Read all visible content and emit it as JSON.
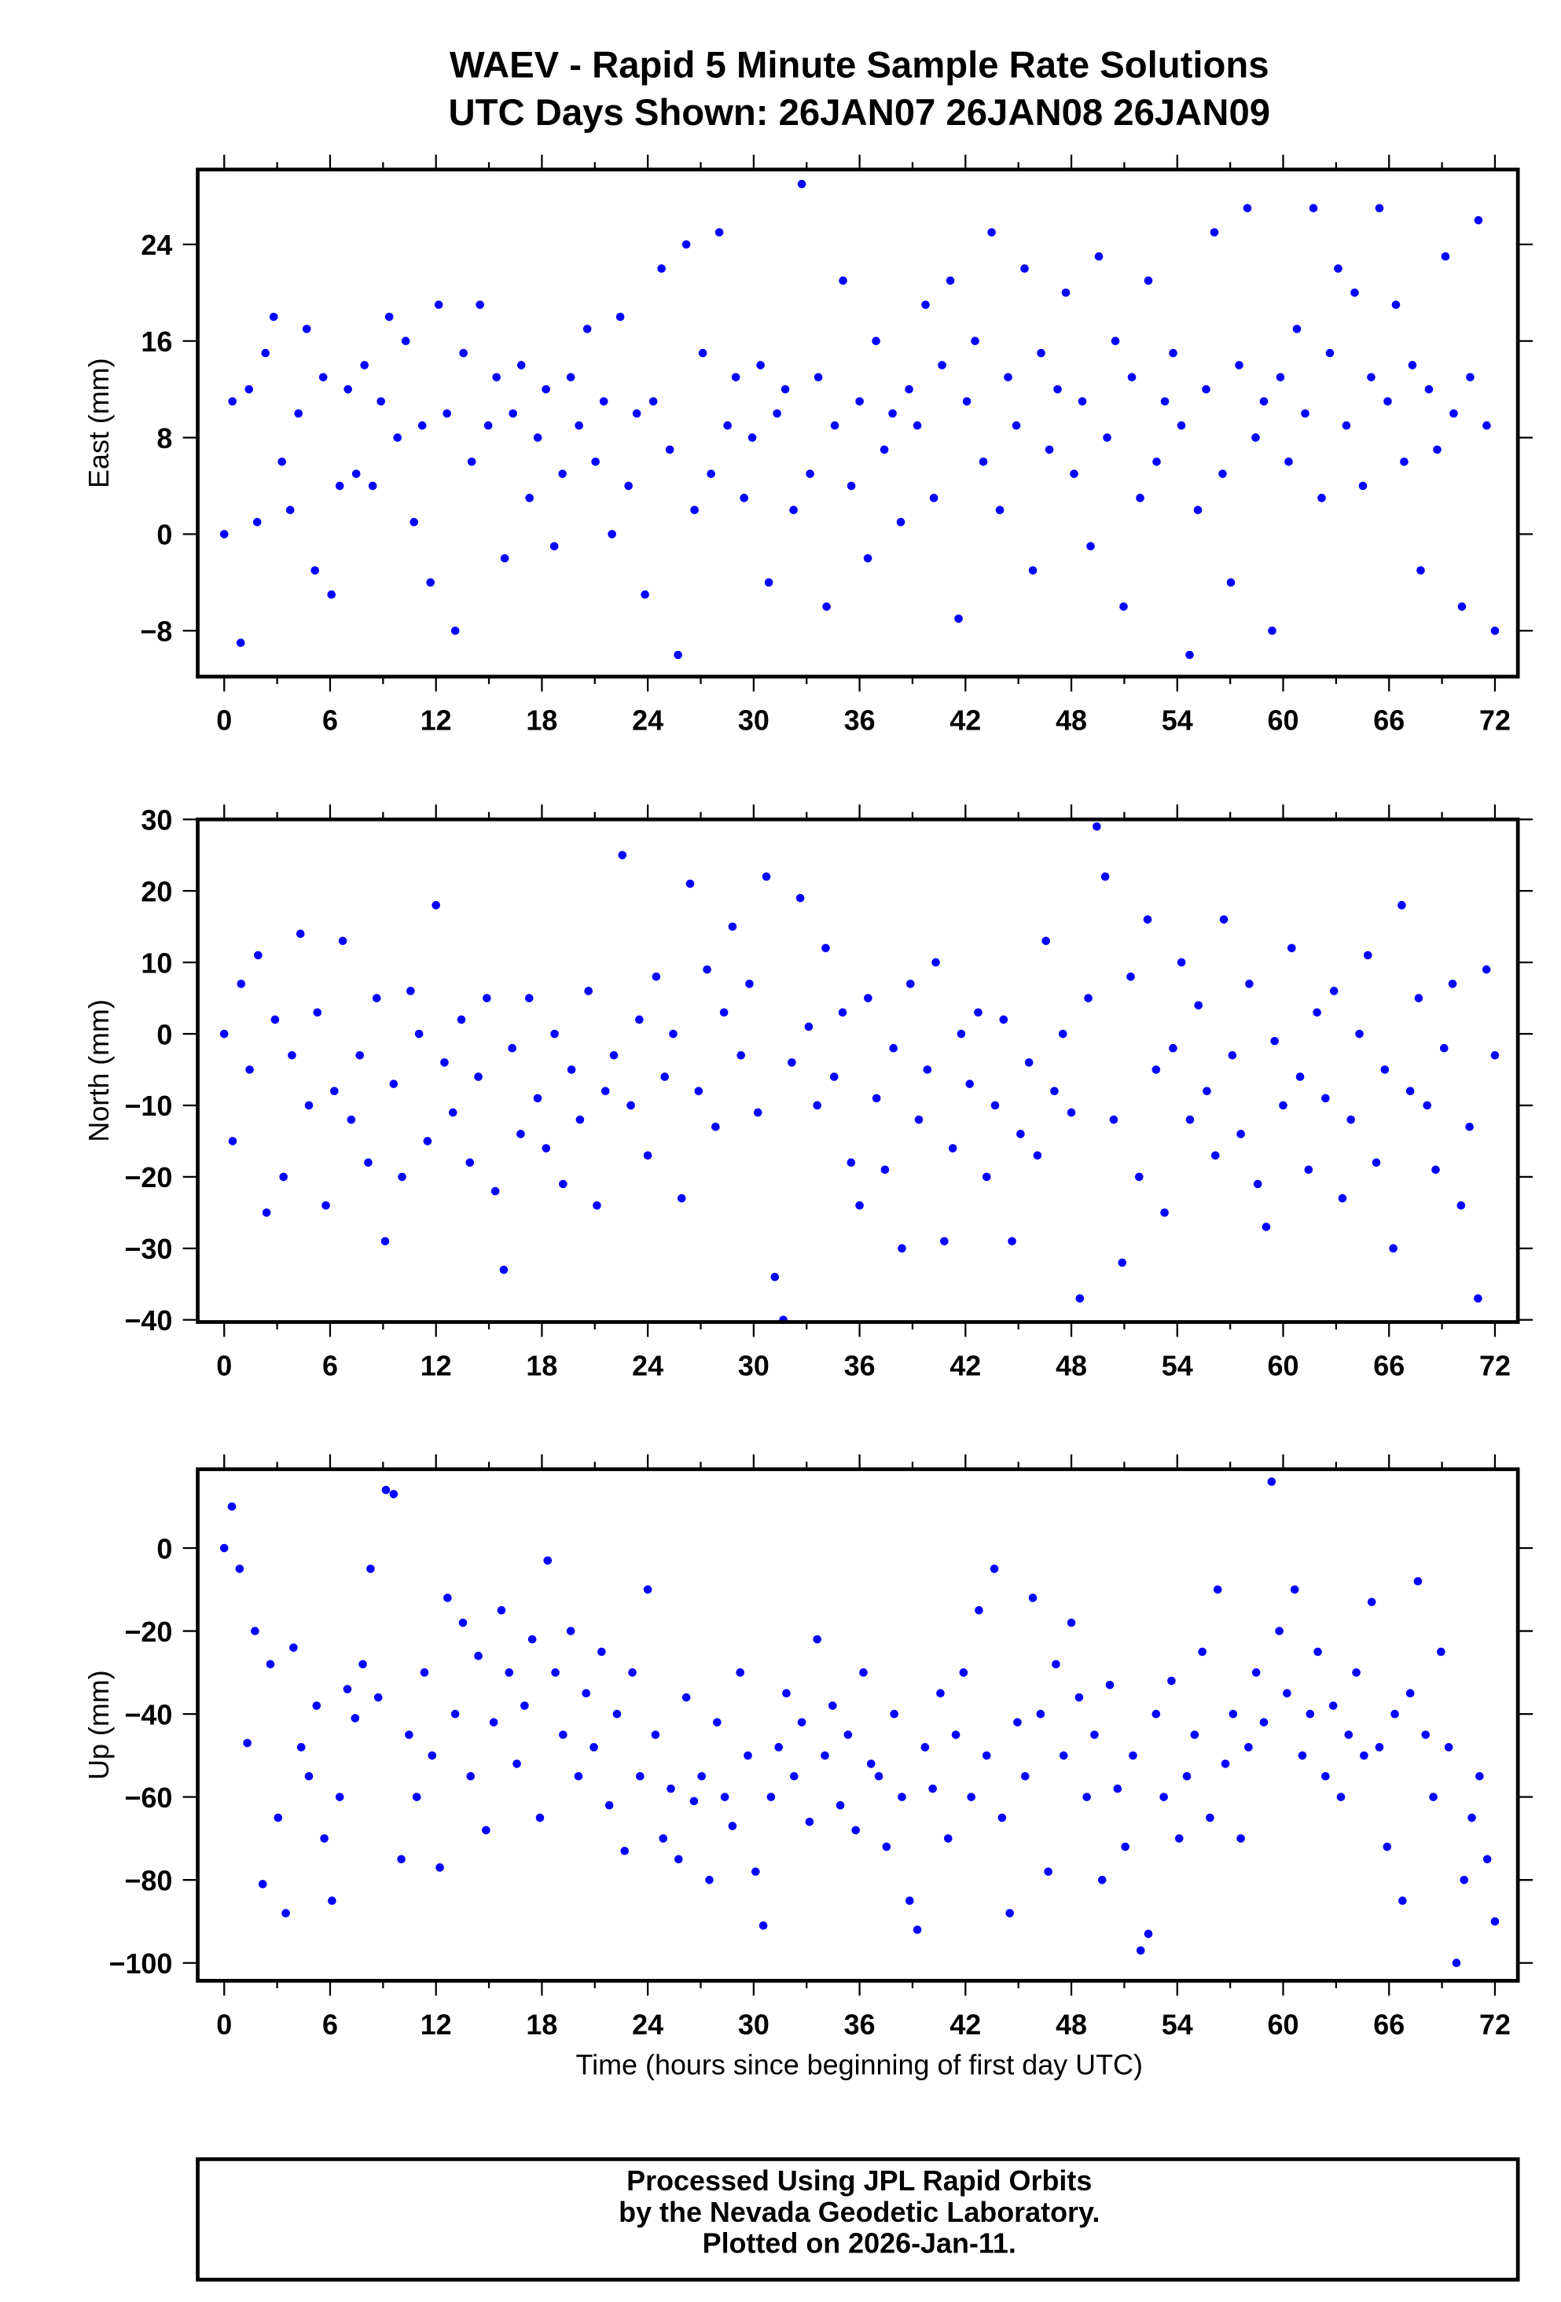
{
  "title_line1": "WAEV - Rapid 5 Minute Sample Rate Solutions",
  "title_line2": "UTC Days Shown:  26JAN07 26JAN08 26JAN09",
  "footer": {
    "line1": "Processed Using JPL Rapid Orbits",
    "line2": "by the Nevada Geodetic Laboratory.",
    "line3": "Plotted on 2026-Jan-11."
  },
  "point_color": "#0000ff",
  "chart_data": [
    {
      "type": "scatter",
      "ylabel": "East (mm)",
      "xlabel": "",
      "xlim": [
        -1.5,
        73.3
      ],
      "ylim": [
        -11.8,
        30.2
      ],
      "x_range": [
        0,
        72
      ],
      "xticks": [
        0,
        6,
        12,
        18,
        24,
        30,
        36,
        42,
        48,
        54,
        60,
        66,
        72
      ],
      "yticks": [
        24,
        16,
        8,
        0,
        -8
      ],
      "ytick_labels": [
        "24",
        "16",
        "8",
        "0",
        "−8"
      ],
      "values": [
        0,
        11,
        -9,
        12,
        1,
        15,
        18,
        6,
        2,
        10,
        17,
        -3,
        13,
        -5,
        4,
        12,
        5,
        14,
        4,
        11,
        18,
        8,
        16,
        1,
        9,
        -4,
        19,
        10,
        -8,
        15,
        6,
        19,
        9,
        13,
        -2,
        10,
        14,
        3,
        8,
        12,
        -1,
        5,
        13,
        9,
        17,
        6,
        11,
        0,
        18,
        4,
        10,
        -5,
        11,
        22,
        7,
        -10,
        24,
        2,
        15,
        5,
        25,
        9,
        13,
        3,
        8,
        14,
        -4,
        10,
        12,
        2,
        29,
        5,
        13,
        -6,
        9,
        21,
        4,
        11,
        -2,
        16,
        7,
        10,
        1,
        12,
        9,
        19,
        3,
        14,
        21,
        -7,
        11,
        16,
        6,
        25,
        2,
        13,
        9,
        22,
        -3,
        15,
        7,
        12,
        20,
        5,
        11,
        -1,
        23,
        8,
        16,
        -6,
        13,
        3,
        21,
        6,
        11,
        15,
        9,
        -10,
        2,
        12,
        25,
        5,
        -4,
        14,
        27,
        8,
        11,
        -8,
        13,
        6,
        17,
        10,
        27,
        3,
        15,
        22,
        9,
        20,
        4,
        13,
        27,
        11,
        19,
        6,
        14,
        -3,
        12,
        7,
        23,
        10,
        -6,
        13,
        26,
        9,
        -8
      ]
    },
    {
      "type": "scatter",
      "ylabel": "North (mm)",
      "xlabel": "",
      "xlim": [
        -1.5,
        73.3
      ],
      "ylim": [
        -40.3,
        30
      ],
      "x_range": [
        0,
        72
      ],
      "xticks": [
        0,
        6,
        12,
        18,
        24,
        30,
        36,
        42,
        48,
        54,
        60,
        66,
        72
      ],
      "yticks": [
        30,
        20,
        10,
        0,
        -10,
        -20,
        -30,
        -40
      ],
      "ytick_labels": [
        "30",
        "20",
        "10",
        "0",
        "−10",
        "−20",
        "−30",
        "−40"
      ],
      "values": [
        0,
        -15,
        7,
        -5,
        11,
        -25,
        2,
        -20,
        -3,
        14,
        -10,
        3,
        -24,
        -8,
        13,
        -12,
        -3,
        -18,
        5,
        -29,
        -7,
        -20,
        6,
        0,
        -15,
        18,
        -4,
        -11,
        2,
        -18,
        -6,
        5,
        -22,
        -33,
        -2,
        -14,
        5,
        -9,
        -16,
        0,
        -21,
        -5,
        -12,
        6,
        -24,
        -8,
        -3,
        25,
        -10,
        2,
        -17,
        8,
        -6,
        0,
        -23,
        21,
        -8,
        9,
        -13,
        3,
        15,
        -3,
        7,
        -11,
        22,
        -34,
        -40,
        -4,
        19,
        1,
        -10,
        12,
        -6,
        3,
        -18,
        -24,
        5,
        -9,
        -19,
        -2,
        -30,
        7,
        -12,
        -5,
        10,
        -29,
        -16,
        0,
        -7,
        3,
        -20,
        -10,
        2,
        -29,
        -14,
        -4,
        -17,
        13,
        -8,
        0,
        -11,
        -37,
        5,
        29,
        22,
        -12,
        -32,
        8,
        -20,
        16,
        -5,
        -25,
        -2,
        10,
        -12,
        4,
        -8,
        -17,
        16,
        -3,
        -14,
        7,
        -21,
        -27,
        -1,
        -10,
        12,
        -6,
        -19,
        3,
        -9,
        6,
        -23,
        -12,
        0,
        11,
        -18,
        -5,
        -30,
        18,
        -8,
        5,
        -10,
        -19,
        -2,
        7,
        -24,
        -13,
        -37,
        9,
        -3
      ]
    },
    {
      "type": "scatter",
      "ylabel": "Up (mm)",
      "xlabel": "Time (hours since beginning of first day UTC)",
      "xlim": [
        -1.5,
        73.3
      ],
      "ylim": [
        -104.3,
        19
      ],
      "x_range": [
        0,
        72
      ],
      "xticks": [
        0,
        6,
        12,
        18,
        24,
        30,
        36,
        42,
        48,
        54,
        60,
        66,
        72
      ],
      "yticks": [
        0,
        -20,
        -40,
        -60,
        -80,
        -100
      ],
      "ytick_labels": [
        "0",
        "−20",
        "−40",
        "−60",
        "−80",
        "−100"
      ],
      "values": [
        0,
        10,
        -5,
        -47,
        -20,
        -81,
        -28,
        -65,
        -88,
        -24,
        -48,
        -55,
        -38,
        -70,
        -85,
        -60,
        -34,
        -41,
        -28,
        -5,
        -36,
        14,
        13,
        -75,
        -45,
        -60,
        -30,
        -50,
        -77,
        -12,
        -40,
        -18,
        -55,
        -26,
        -68,
        -42,
        -15,
        -30,
        -52,
        -38,
        -22,
        -65,
        -3,
        -30,
        -45,
        -20,
        -55,
        -35,
        -48,
        -25,
        -62,
        -40,
        -73,
        -30,
        -55,
        -10,
        -45,
        -70,
        -58,
        -75,
        -36,
        -61,
        -55,
        -80,
        -42,
        -60,
        -67,
        -30,
        -50,
        -78,
        -91,
        -60,
        -48,
        -35,
        -55,
        -42,
        -66,
        -22,
        -50,
        -38,
        -62,
        -45,
        -68,
        -30,
        -52,
        -55,
        -72,
        -40,
        -60,
        -85,
        -92,
        -48,
        -58,
        -35,
        -70,
        -45,
        -30,
        -60,
        -15,
        -50,
        -5,
        -65,
        -88,
        -42,
        -55,
        -12,
        -40,
        -78,
        -28,
        -50,
        -18,
        -36,
        -60,
        -45,
        -80,
        -33,
        -58,
        -72,
        -50,
        -97,
        -93,
        -40,
        -60,
        -32,
        -70,
        -55,
        -45,
        -25,
        -65,
        -10,
        -52,
        -40,
        -70,
        -48,
        -30,
        -42,
        16,
        -20,
        -35,
        -10,
        -50,
        -40,
        -25,
        -55,
        -38,
        -60,
        -45,
        -30,
        -50,
        -13,
        -48,
        -72,
        -40,
        -85,
        -35,
        -8,
        -45,
        -60,
        -25,
        -48,
        -100,
        -80,
        -65,
        -55,
        -75,
        -90
      ]
    }
  ]
}
